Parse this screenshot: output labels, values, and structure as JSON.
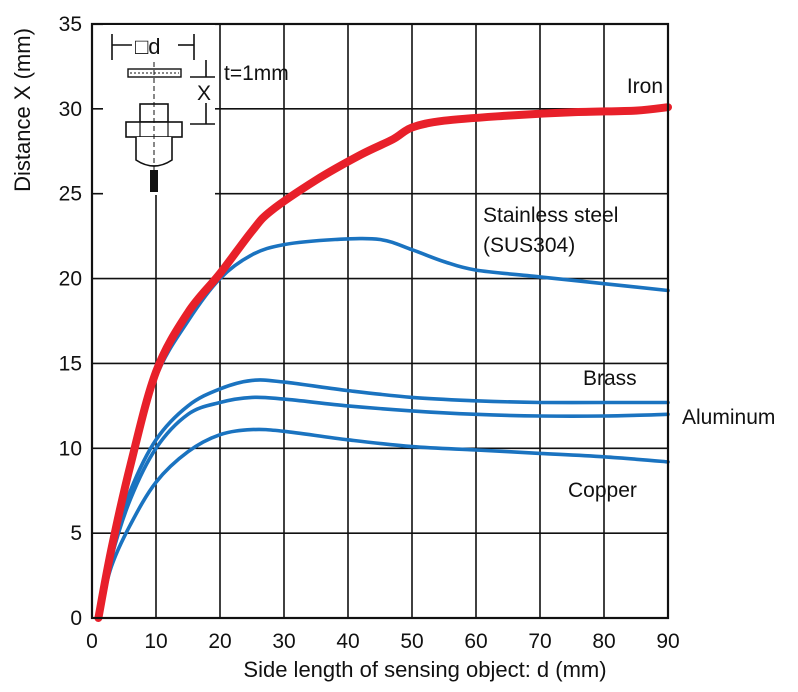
{
  "chart_data": {
    "type": "line",
    "xlabel": "Side length of sensing object: d (mm)",
    "ylabel": "Distance X (mm)",
    "xlim": [
      0,
      90
    ],
    "ylim": [
      0,
      35
    ],
    "xticks": [
      0,
      10,
      20,
      30,
      40,
      50,
      60,
      70,
      80,
      90
    ],
    "yticks": [
      0,
      5,
      10,
      15,
      20,
      25,
      30,
      35
    ],
    "grid": true,
    "series": [
      {
        "name": "Iron",
        "color": "#e8202a",
        "x": [
          1,
          3,
          6,
          10,
          15,
          20,
          25,
          28,
          35,
          42,
          47,
          50,
          55,
          65,
          75,
          85,
          90
        ],
        "y": [
          0,
          4,
          9,
          14.5,
          18,
          20.3,
          22.8,
          24,
          25.8,
          27.3,
          28.2,
          28.9,
          29.3,
          29.6,
          29.8,
          29.9,
          30.1
        ]
      },
      {
        "name": "Stainless steel (SUS304)",
        "color": "#1a73c0",
        "x": [
          1,
          3,
          6,
          10,
          15,
          20,
          25,
          30,
          38,
          45,
          50,
          55,
          60,
          70,
          80,
          90
        ],
        "y": [
          0,
          4,
          9,
          14.2,
          17.5,
          20,
          21.4,
          22,
          22.3,
          22.3,
          21.7,
          21,
          20.5,
          20.1,
          19.7,
          19.3
        ]
      },
      {
        "name": "Brass",
        "color": "#1a73c0",
        "x": [
          1,
          3,
          6,
          10,
          15,
          20,
          25,
          30,
          40,
          50,
          60,
          70,
          80,
          90
        ],
        "y": [
          0,
          4,
          7.5,
          10.5,
          12.5,
          13.5,
          14,
          13.9,
          13.4,
          13,
          12.8,
          12.7,
          12.7,
          12.7
        ]
      },
      {
        "name": "Aluminum",
        "color": "#1a73c0",
        "x": [
          1,
          3,
          6,
          10,
          15,
          20,
          25,
          30,
          40,
          50,
          60,
          70,
          80,
          90
        ],
        "y": [
          0,
          3.5,
          7,
          10,
          12,
          12.7,
          13,
          12.9,
          12.5,
          12.2,
          12,
          11.9,
          11.9,
          12
        ]
      },
      {
        "name": "Copper",
        "color": "#1a73c0",
        "x": [
          1,
          3,
          6,
          10,
          15,
          20,
          25,
          30,
          40,
          50,
          60,
          70,
          80,
          90
        ],
        "y": [
          0,
          3,
          5.5,
          8,
          9.8,
          10.8,
          11.1,
          11,
          10.5,
          10.1,
          9.9,
          9.7,
          9.5,
          9.2
        ]
      }
    ],
    "labels": {
      "iron": "Iron",
      "stainless_line1": "Stainless steel",
      "stainless_line2": "(SUS304)",
      "brass": "Brass",
      "aluminum": "Aluminum",
      "copper": "Copper"
    },
    "inset": {
      "d_label": "□d",
      "x_label": "X",
      "thickness_label": "t=1mm"
    }
  }
}
